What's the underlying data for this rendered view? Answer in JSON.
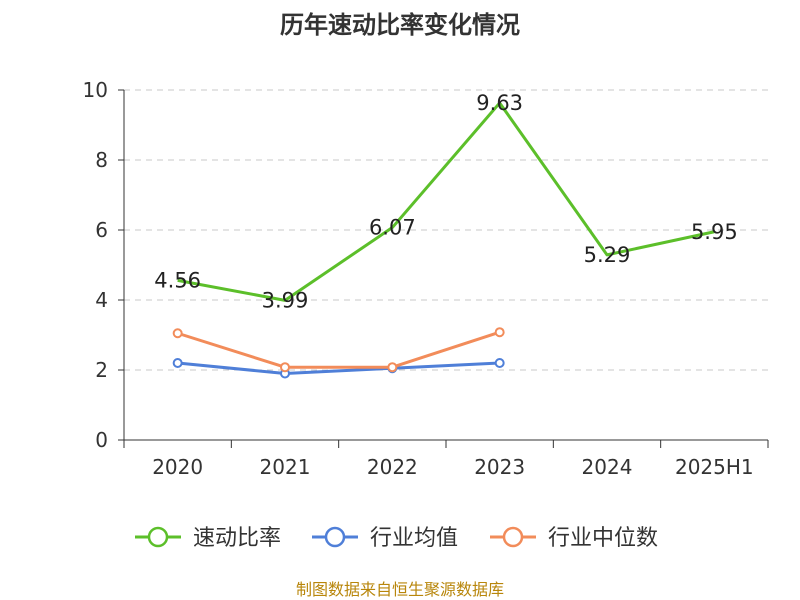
{
  "chart_data": {
    "type": "line",
    "title": "历年速动比率变化情况",
    "categories": [
      "2020",
      "2021",
      "2022",
      "2023",
      "2024",
      "2025H1"
    ],
    "ylim": [
      0,
      10
    ],
    "yticks": [
      0,
      2,
      4,
      6,
      8,
      10
    ],
    "grid": true,
    "legend_position": "bottom",
    "series": [
      {
        "name": "速动比率",
        "color": "#5cbf2a",
        "values": [
          4.56,
          3.99,
          6.07,
          9.63,
          5.29,
          5.95
        ],
        "labels": [
          "4.56",
          "3.99",
          "6.07",
          "9.63",
          "5.29",
          "5.95"
        ],
        "marker": "hollow-circle-hidden"
      },
      {
        "name": "行业均值",
        "color": "#4f7fd8",
        "values": [
          2.2,
          1.9,
          2.05,
          2.2,
          null,
          null
        ],
        "marker": "hollow-circle"
      },
      {
        "name": "行业中位数",
        "color": "#f28c5a",
        "values": [
          3.05,
          2.08,
          2.08,
          3.08,
          null,
          null
        ],
        "marker": "hollow-circle"
      }
    ],
    "source": "制图数据来自恒生聚源数据库"
  }
}
